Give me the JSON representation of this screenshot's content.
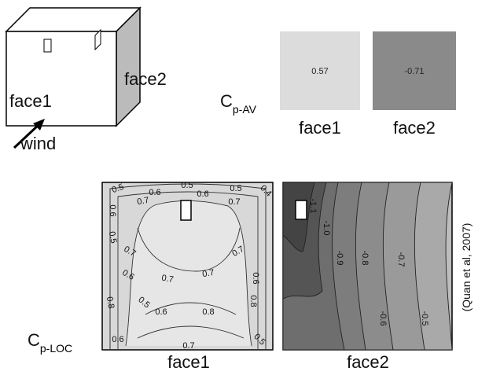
{
  "cube": {
    "face1": "face1",
    "face2": "face2",
    "wind": "wind"
  },
  "average": {
    "symbol": "C",
    "subscript": "p-AV",
    "faces": [
      {
        "label": "face1",
        "value": "0.57"
      },
      {
        "label": "face2",
        "value": "-0.71"
      }
    ]
  },
  "local": {
    "symbol": "C",
    "subscript": "p-LOC",
    "faces": [
      {
        "label": "face1",
        "contour_labels": [
          "0.5",
          "0.6",
          "0.5",
          "0.6",
          "0.5",
          "0.4",
          "0.7",
          "0.7",
          "0.6",
          "0.5",
          "0.7",
          "0.7",
          "0.6",
          "0.7",
          "0.7",
          "0.6",
          "0.8",
          "0.5",
          "0.6",
          "0.8",
          "0.8",
          "0.6",
          "0.7",
          "0.5"
        ]
      },
      {
        "label": "face2",
        "contour_labels": [
          "-1.1",
          "-1.0",
          "-0.9",
          "-0.8",
          "-0.7",
          "-0.6",
          "-0.5"
        ]
      }
    ]
  },
  "citation": "(Quan et al, 2007)"
}
